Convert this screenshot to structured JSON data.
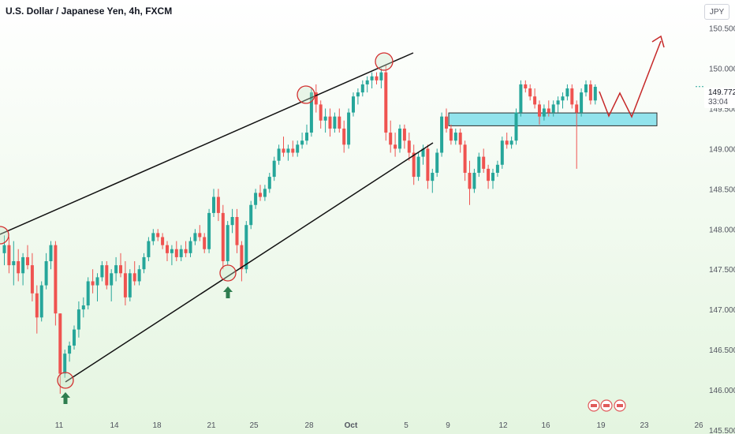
{
  "header": {
    "symbol_title": "U.S. Dollar / Japanese Yen, 4h, FXCM",
    "currency": "JPY"
  },
  "last_price": {
    "value": "149.772",
    "countdown": "33:04"
  },
  "colors": {
    "up": "#26a69a",
    "down": "#ef5350",
    "zone_fill": "#80deea",
    "marker_circle": "#d32f2f",
    "arrow": "#2e7d4f",
    "projection": "#c62828",
    "bg_top": "#ffffff",
    "bg_bottom": "#e4f5e0"
  },
  "chart_data": {
    "type": "candlestick",
    "y_axis": {
      "ticks": [
        "150.500",
        "150.000",
        "149.500",
        "149.000",
        "148.500",
        "148.000",
        "147.500",
        "147.000",
        "146.500",
        "146.000",
        "145.500"
      ],
      "ylim": [
        145.45,
        150.85
      ]
    },
    "x_axis": {
      "ticks": [
        "11",
        "14",
        "18",
        "21",
        "25",
        "28",
        "Oct",
        "5",
        "9",
        "12",
        "16",
        "19",
        "23",
        "26"
      ]
    },
    "candles": [
      [
        147.7,
        147.92,
        147.55,
        147.8
      ],
      [
        147.8,
        147.9,
        147.45,
        147.55
      ],
      [
        147.55,
        147.85,
        147.3,
        147.6
      ],
      [
        147.6,
        147.75,
        147.35,
        147.45
      ],
      [
        147.45,
        147.7,
        147.3,
        147.65
      ],
      [
        147.65,
        147.8,
        147.5,
        147.55
      ],
      [
        147.55,
        147.7,
        147.1,
        147.2
      ],
      [
        147.2,
        147.3,
        146.7,
        146.9
      ],
      [
        146.9,
        147.35,
        146.85,
        147.3
      ],
      [
        147.3,
        147.7,
        147.25,
        147.6
      ],
      [
        147.6,
        147.85,
        147.5,
        147.8
      ],
      [
        147.8,
        147.85,
        146.8,
        146.95
      ],
      [
        146.95,
        146.95,
        145.95,
        146.2
      ],
      [
        146.2,
        146.5,
        146.15,
        146.45
      ],
      [
        146.45,
        146.6,
        146.35,
        146.55
      ],
      [
        146.55,
        146.8,
        146.5,
        146.75
      ],
      [
        146.75,
        147.1,
        146.65,
        147.0
      ],
      [
        147.0,
        147.15,
        146.9,
        147.05
      ],
      [
        147.05,
        147.4,
        147.0,
        147.35
      ],
      [
        147.35,
        147.5,
        147.2,
        147.3
      ],
      [
        147.3,
        147.45,
        147.1,
        147.4
      ],
      [
        147.4,
        147.6,
        147.35,
        147.55
      ],
      [
        147.55,
        147.6,
        147.25,
        147.3
      ],
      [
        147.3,
        147.5,
        147.1,
        147.45
      ],
      [
        147.45,
        147.65,
        147.35,
        147.55
      ],
      [
        147.55,
        147.7,
        147.4,
        147.45
      ],
      [
        147.45,
        147.6,
        147.05,
        147.15
      ],
      [
        147.15,
        147.5,
        147.1,
        147.45
      ],
      [
        147.45,
        147.6,
        147.3,
        147.35
      ],
      [
        147.35,
        147.55,
        147.3,
        147.5
      ],
      [
        147.5,
        147.7,
        147.45,
        147.65
      ],
      [
        147.65,
        147.9,
        147.6,
        147.85
      ],
      [
        147.85,
        148.0,
        147.8,
        147.95
      ],
      [
        147.95,
        148.0,
        147.85,
        147.9
      ],
      [
        147.9,
        147.95,
        147.75,
        147.8
      ],
      [
        147.8,
        147.85,
        147.6,
        147.7
      ],
      [
        147.7,
        147.8,
        147.55,
        147.75
      ],
      [
        147.75,
        147.85,
        147.6,
        147.65
      ],
      [
        147.65,
        147.8,
        147.6,
        147.75
      ],
      [
        147.75,
        147.85,
        147.65,
        147.7
      ],
      [
        147.7,
        147.9,
        147.65,
        147.85
      ],
      [
        147.85,
        148.0,
        147.8,
        147.95
      ],
      [
        147.95,
        148.05,
        147.85,
        147.9
      ],
      [
        147.9,
        147.95,
        147.7,
        147.75
      ],
      [
        147.75,
        148.25,
        147.7,
        148.2
      ],
      [
        148.2,
        148.5,
        148.15,
        148.4
      ],
      [
        148.4,
        148.5,
        148.1,
        148.2
      ],
      [
        148.2,
        148.3,
        147.5,
        147.6
      ],
      [
        147.6,
        148.1,
        147.55,
        148.05
      ],
      [
        148.05,
        148.25,
        147.95,
        148.15
      ],
      [
        148.15,
        148.25,
        147.7,
        147.8
      ],
      [
        147.8,
        147.85,
        147.35,
        147.5
      ],
      [
        147.5,
        148.1,
        147.45,
        148.05
      ],
      [
        148.05,
        148.35,
        148.0,
        148.3
      ],
      [
        148.3,
        148.5,
        148.25,
        148.45
      ],
      [
        148.45,
        148.55,
        148.35,
        148.4
      ],
      [
        148.4,
        148.55,
        148.35,
        148.5
      ],
      [
        148.5,
        148.7,
        148.45,
        148.65
      ],
      [
        148.65,
        148.9,
        148.6,
        148.85
      ],
      [
        148.85,
        149.05,
        148.8,
        149.0
      ],
      [
        149.0,
        149.15,
        148.9,
        148.95
      ],
      [
        148.95,
        149.05,
        148.85,
        149.0
      ],
      [
        149.0,
        149.1,
        148.9,
        148.95
      ],
      [
        148.95,
        149.1,
        148.9,
        149.05
      ],
      [
        149.05,
        149.2,
        149.0,
        149.1
      ],
      [
        149.1,
        149.3,
        149.05,
        149.2
      ],
      [
        149.2,
        149.75,
        149.15,
        149.7
      ],
      [
        149.7,
        149.8,
        149.45,
        149.55
      ],
      [
        149.55,
        149.6,
        149.25,
        149.35
      ],
      [
        149.35,
        149.5,
        149.2,
        149.4
      ],
      [
        149.4,
        149.5,
        149.15,
        149.25
      ],
      [
        149.25,
        149.45,
        149.2,
        149.4
      ],
      [
        149.4,
        149.5,
        149.2,
        149.25
      ],
      [
        149.25,
        149.35,
        148.95,
        149.05
      ],
      [
        149.05,
        149.5,
        149.0,
        149.45
      ],
      [
        149.45,
        149.7,
        149.4,
        149.65
      ],
      [
        149.65,
        149.75,
        149.55,
        149.7
      ],
      [
        149.7,
        149.85,
        149.65,
        149.8
      ],
      [
        149.8,
        149.9,
        149.7,
        149.85
      ],
      [
        149.85,
        149.95,
        149.75,
        149.9
      ],
      [
        149.9,
        149.95,
        149.8,
        149.85
      ],
      [
        149.85,
        150.0,
        149.75,
        149.95
      ],
      [
        149.95,
        150.05,
        149.1,
        149.2
      ],
      [
        149.2,
        149.35,
        148.95,
        149.05
      ],
      [
        149.05,
        149.2,
        148.9,
        149.0
      ],
      [
        149.0,
        149.3,
        148.95,
        149.25
      ],
      [
        149.25,
        149.3,
        149.0,
        149.1
      ],
      [
        149.1,
        149.2,
        148.85,
        148.95
      ],
      [
        148.95,
        149.05,
        148.55,
        148.65
      ],
      [
        148.65,
        148.95,
        148.6,
        148.9
      ],
      [
        148.9,
        149.05,
        148.8,
        149.0
      ],
      [
        149.0,
        149.05,
        148.5,
        148.6
      ],
      [
        148.6,
        148.75,
        148.45,
        148.7
      ],
      [
        148.7,
        149.0,
        148.65,
        148.95
      ],
      [
        148.95,
        149.45,
        148.9,
        149.4
      ],
      [
        149.4,
        149.5,
        149.2,
        149.25
      ],
      [
        149.25,
        149.3,
        149.05,
        149.1
      ],
      [
        149.1,
        149.25,
        149.05,
        149.2
      ],
      [
        149.2,
        149.25,
        148.95,
        149.05
      ],
      [
        149.05,
        149.1,
        148.6,
        148.7
      ],
      [
        148.7,
        148.85,
        148.3,
        148.5
      ],
      [
        148.5,
        148.75,
        148.45,
        148.7
      ],
      [
        148.7,
        148.95,
        148.65,
        148.9
      ],
      [
        148.9,
        149.0,
        148.7,
        148.75
      ],
      [
        148.75,
        148.8,
        148.5,
        148.6
      ],
      [
        148.6,
        148.75,
        148.5,
        148.7
      ],
      [
        148.7,
        148.85,
        148.65,
        148.8
      ],
      [
        148.8,
        149.15,
        148.75,
        149.1
      ],
      [
        149.1,
        149.2,
        149.0,
        149.05
      ],
      [
        149.05,
        149.15,
        149.0,
        149.1
      ],
      [
        149.1,
        149.5,
        149.05,
        149.45
      ],
      [
        149.45,
        149.85,
        149.4,
        149.8
      ],
      [
        149.8,
        149.85,
        149.7,
        149.75
      ],
      [
        149.75,
        149.8,
        149.6,
        149.65
      ],
      [
        149.65,
        149.75,
        149.5,
        149.55
      ],
      [
        149.55,
        149.6,
        149.3,
        149.4
      ],
      [
        149.4,
        149.55,
        149.35,
        149.5
      ],
      [
        149.5,
        149.6,
        149.4,
        149.45
      ],
      [
        149.45,
        149.6,
        149.4,
        149.55
      ],
      [
        149.55,
        149.65,
        149.45,
        149.6
      ],
      [
        149.6,
        149.7,
        149.5,
        149.65
      ],
      [
        149.65,
        149.8,
        149.6,
        149.75
      ],
      [
        149.75,
        149.8,
        149.5,
        149.55
      ],
      [
        149.55,
        149.6,
        148.75,
        149.45
      ],
      [
        149.45,
        149.75,
        149.4,
        149.7
      ],
      [
        149.7,
        149.85,
        149.65,
        149.8
      ],
      [
        149.8,
        149.85,
        149.55,
        149.6
      ],
      [
        149.6,
        149.8,
        149.55,
        149.77
      ]
    ]
  }
}
